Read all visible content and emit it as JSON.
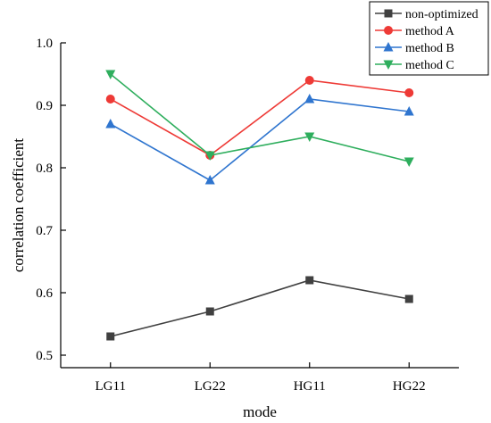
{
  "chart_data": {
    "type": "line",
    "title": "",
    "xlabel": "mode",
    "ylabel": "correlation coefficient",
    "categories": [
      "LG11",
      "LG22",
      "HG11",
      "HG22"
    ],
    "ylim": [
      0.48,
      1.0
    ],
    "yticks": [
      "0.5",
      "0.6",
      "0.7",
      "0.8",
      "0.9",
      "1.0"
    ],
    "grid": false,
    "legend_position": "top-right",
    "series": [
      {
        "name": "non-optimized",
        "values": [
          0.53,
          0.57,
          0.62,
          0.59
        ],
        "color": "#404040",
        "marker": "square"
      },
      {
        "name": "method A",
        "values": [
          0.91,
          0.82,
          0.94,
          0.92
        ],
        "color": "#ee3a36",
        "marker": "circle"
      },
      {
        "name": "method B",
        "values": [
          0.87,
          0.78,
          0.91,
          0.89
        ],
        "color": "#2f75cf",
        "marker": "triangle-up"
      },
      {
        "name": "method C",
        "values": [
          0.95,
          0.82,
          0.85,
          0.81
        ],
        "color": "#2eae5d",
        "marker": "triangle-down"
      }
    ]
  }
}
